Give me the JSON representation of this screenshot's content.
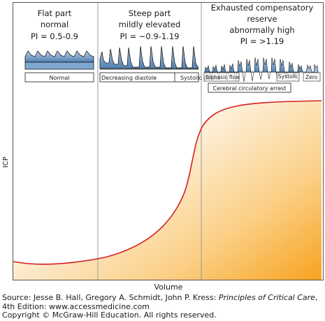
{
  "figure": {
    "y_axis_label": "ICP",
    "x_axis_label": "Volume",
    "zones": [
      {
        "title_line1": "Flat part",
        "title_line2": "normal",
        "pi": "PI = 0.5-0.9",
        "wave_labels": [
          "Normal"
        ]
      },
      {
        "title_line1": "Steep part",
        "title_line2": "mildly elevated",
        "pi": "PI = ~0.9-1.19",
        "wave_labels": [
          "Decreasing diastole",
          "Systolic peaks"
        ]
      },
      {
        "title_line1": "Exhausted compensatory",
        "title_line2": "reserve",
        "title_line3": "abnormally high",
        "pi": "PI = >1.19",
        "wave_labels": [
          "Biphasic flow",
          "Systolic",
          "Zero",
          "Cerebral circulatory arrest"
        ]
      }
    ]
  },
  "source": {
    "prefix": "Source: Jesse B. Hall, Gregory A. Schmidt, John P. Kress:",
    "book": "Principles of Critical Care",
    "suffix": ", 4th Edition: www.accessmedicine.com",
    "copyright": "Copyright © McGraw-Hill Education. All rights reserved."
  },
  "colors": {
    "curve": "#d42020",
    "fill_light": "#fdf3e0",
    "fill_dark": "#f7a31f",
    "wave_fill": "#7ea7cf",
    "divider": "#9a9a9a"
  }
}
